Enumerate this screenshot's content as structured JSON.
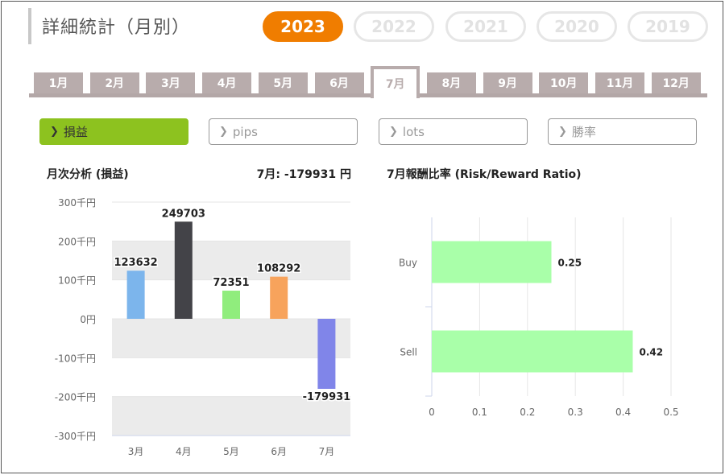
{
  "page": {
    "title": "詳細統計（月別）"
  },
  "years": [
    {
      "label": "2023",
      "active": true
    },
    {
      "label": "2022",
      "active": false
    },
    {
      "label": "2021",
      "active": false
    },
    {
      "label": "2020",
      "active": false
    },
    {
      "label": "2019",
      "active": false
    }
  ],
  "months": [
    {
      "label": "1月",
      "active": false
    },
    {
      "label": "2月",
      "active": false
    },
    {
      "label": "3月",
      "active": false
    },
    {
      "label": "4月",
      "active": false
    },
    {
      "label": "5月",
      "active": false
    },
    {
      "label": "6月",
      "active": false
    },
    {
      "label": "7月",
      "active": true
    },
    {
      "label": "8月",
      "active": false
    },
    {
      "label": "9月",
      "active": false
    },
    {
      "label": "10月",
      "active": false
    },
    {
      "label": "11月",
      "active": false
    },
    {
      "label": "12月",
      "active": false
    }
  ],
  "metrics": [
    {
      "label": "損益",
      "active": true,
      "chevron": "chevron-right-icon"
    },
    {
      "label": "pips",
      "active": false,
      "chevron": "chevron-right-icon"
    },
    {
      "label": "lots",
      "active": false,
      "chevron": "chevron-right-icon"
    },
    {
      "label": "勝率",
      "active": false,
      "chevron": "chevron-right-icon"
    }
  ],
  "monthly_analysis": {
    "title": "月次分析 (損益)",
    "month_label": "7月:",
    "month_value": "-179931 円"
  },
  "ratio_section": {
    "title": "7月報酬比率 (Risk/Reward Ratio)"
  },
  "colors": {
    "accent": "#f07d00",
    "active_metric": "#8dc21f",
    "tab": "#b8acac",
    "band": "#ebebeb"
  },
  "chart_data": [
    {
      "type": "bar",
      "categories": [
        "3月",
        "4月",
        "5月",
        "6月",
        "7月"
      ],
      "values": [
        123632,
        249703,
        72351,
        108292,
        -179931
      ],
      "colors": [
        "#7cb5ec",
        "#434348",
        "#90ed7d",
        "#f7a35c",
        "#8085e9"
      ],
      "data_labels": [
        "123632",
        "249703",
        "72351",
        "108292",
        "-179931"
      ],
      "ylim": [
        -300000,
        300000
      ],
      "yticks": [
        300000,
        200000,
        100000,
        0,
        -100000,
        -200000,
        -300000
      ],
      "ytick_labels": [
        "300千円",
        "200千円",
        "100千円",
        "0円",
        "-100千円",
        "-200千円",
        "-300千円"
      ],
      "grid": true
    },
    {
      "type": "bar",
      "orientation": "horizontal",
      "categories": [
        "Buy",
        "Sell"
      ],
      "values": [
        0.25,
        0.42
      ],
      "data_labels": [
        "0.25",
        "0.42"
      ],
      "color": "#a9ffa9",
      "xlim": [
        0,
        0.5
      ],
      "xticks": [
        0,
        0.1,
        0.2,
        0.3,
        0.4,
        0.5
      ],
      "xtick_labels": [
        "0",
        "0.1",
        "0.2",
        "0.3",
        "0.4",
        "0.5"
      ],
      "grid": true
    }
  ]
}
